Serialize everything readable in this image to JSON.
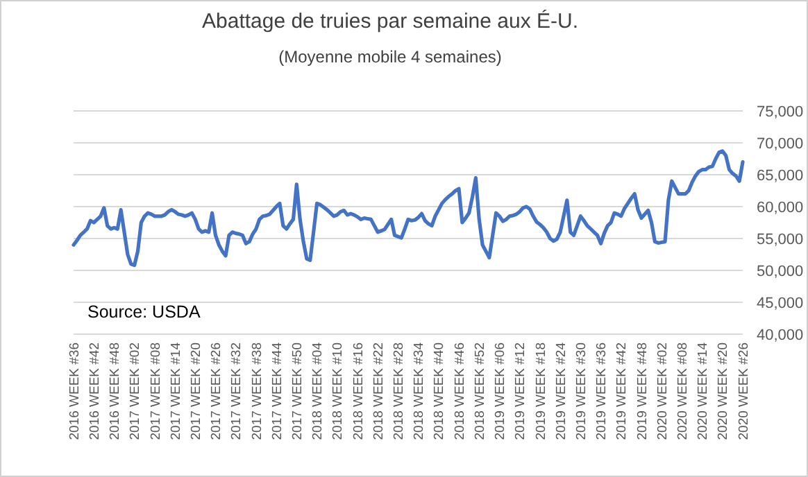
{
  "chart_data": {
    "type": "line",
    "title": "Abattage de truies par semaine aux É-U.",
    "subtitle": "(Moyenne mobile 4 semaines)",
    "annotations": [
      "Source: USDA"
    ],
    "categories": [
      "2016 WEEK #36",
      null,
      null,
      null,
      null,
      null,
      "2016 WEEK #42",
      null,
      null,
      null,
      null,
      null,
      "2016 WEEK #48",
      null,
      null,
      null,
      null,
      null,
      "2017 WEEK #02",
      null,
      null,
      null,
      null,
      null,
      "2017 WEEK #08",
      null,
      null,
      null,
      null,
      null,
      "2017 WEEK #14",
      null,
      null,
      null,
      null,
      null,
      "2017 WEEK #20",
      null,
      null,
      null,
      null,
      null,
      "2017 WEEK #26",
      null,
      null,
      null,
      null,
      null,
      "2017 WEEK #32",
      null,
      null,
      null,
      null,
      null,
      "2017 WEEK #38",
      null,
      null,
      null,
      null,
      null,
      "2017 WEEK #44",
      null,
      null,
      null,
      null,
      null,
      "2017 WEEK #50",
      null,
      null,
      null,
      null,
      null,
      "2018 WEEK #04",
      null,
      null,
      null,
      null,
      null,
      "2018 WEEK #10",
      null,
      null,
      null,
      null,
      null,
      "2018 WEEK #16",
      null,
      null,
      null,
      null,
      null,
      "2018 WEEK #22",
      null,
      null,
      null,
      null,
      null,
      "2018 WEEK #28",
      null,
      null,
      null,
      null,
      null,
      "2018 WEEK #34",
      null,
      null,
      null,
      null,
      null,
      "2018 WEEK #40",
      null,
      null,
      null,
      null,
      null,
      "2018 WEEK #46",
      null,
      null,
      null,
      null,
      null,
      "2018 WEEK #52",
      null,
      null,
      null,
      null,
      null,
      "2019 WEEK #06",
      null,
      null,
      null,
      null,
      null,
      "2019 WEEK #12",
      null,
      null,
      null,
      null,
      null,
      "2019 WEEK #18",
      null,
      null,
      null,
      null,
      null,
      "2019 WEEK #24",
      null,
      null,
      null,
      null,
      null,
      "2019 WEEK #30",
      null,
      null,
      null,
      null,
      null,
      "2019 WEEK #36",
      null,
      null,
      null,
      null,
      null,
      "2019 WEEK #42",
      null,
      null,
      null,
      null,
      null,
      "2019 WEEK #48",
      null,
      null,
      null,
      null,
      null,
      "2020 WEEK #02",
      null,
      null,
      null,
      null,
      null,
      "2020 WEEK #08",
      null,
      null,
      null,
      null,
      null,
      "2020 WEEK #14",
      null,
      null,
      null,
      null,
      null,
      "2020 WEEK #20",
      null,
      null,
      null,
      null,
      null,
      "2020 WEEK #26"
    ],
    "series": [
      {
        "color": "#4472c4",
        "values": [
          54000,
          54700,
          55500,
          56000,
          56500,
          57800,
          57500,
          58000,
          58500,
          59800,
          57000,
          56500,
          56700,
          56500,
          59500,
          56000,
          52500,
          51000,
          50800,
          53000,
          57500,
          58500,
          59000,
          58800,
          58500,
          58500,
          58500,
          58700,
          59200,
          59500,
          59200,
          58800,
          58700,
          58500,
          58700,
          59000,
          58000,
          56500,
          56000,
          56200,
          56000,
          59000,
          55500,
          54000,
          53000,
          52300,
          55500,
          56000,
          55800,
          55700,
          55500,
          54200,
          54500,
          55700,
          56500,
          58000,
          58500,
          58600,
          58800,
          59400,
          60000,
          60500,
          57000,
          56500,
          57300,
          58000,
          63500,
          58000,
          54500,
          51800,
          51600,
          56000,
          60500,
          60300,
          59900,
          59500,
          59000,
          58500,
          58700,
          59200,
          59400,
          58700,
          58900,
          58700,
          58400,
          58000,
          58200,
          58100,
          58000,
          57000,
          56000,
          56200,
          56400,
          57200,
          58000,
          55500,
          55300,
          55100,
          56500,
          58000,
          57800,
          57900,
          58300,
          58900,
          57800,
          57300,
          57000,
          58500,
          59500,
          60500,
          61100,
          61600,
          62000,
          62500,
          62800,
          57500,
          58200,
          59000,
          61500,
          64500,
          58000,
          54000,
          53000,
          52000,
          55500,
          59000,
          58500,
          57700,
          58000,
          58500,
          58600,
          58800,
          59200,
          59800,
          60000,
          59600,
          58500,
          57600,
          57200,
          56700,
          56000,
          55000,
          54600,
          54900,
          56000,
          58500,
          61000,
          56000,
          55500,
          57000,
          58500,
          57800,
          57000,
          56500,
          56000,
          55500,
          54200,
          55800,
          57000,
          57500,
          59000,
          58800,
          58500,
          59700,
          60500,
          61300,
          62000,
          59500,
          58200,
          58800,
          59400,
          57500,
          54500,
          54300,
          54400,
          54500,
          61000,
          64000,
          63000,
          62000,
          62000,
          62000,
          62500,
          63800,
          64800,
          65500,
          65800,
          65800,
          66200,
          66300,
          67500,
          68500,
          68700,
          68000,
          65800,
          65200,
          64800,
          64000,
          67000
        ]
      }
    ],
    "ylim": [
      40000,
      75000
    ],
    "yticks": [
      {
        "value": 40000,
        "label": "40,000"
      },
      {
        "value": 45000,
        "label": "45,000"
      },
      {
        "value": 50000,
        "label": "50,000"
      },
      {
        "value": 55000,
        "label": "55,000"
      },
      {
        "value": 60000,
        "label": "60,000"
      },
      {
        "value": 65000,
        "label": "65,000"
      },
      {
        "value": 70000,
        "label": "70,000"
      },
      {
        "value": 75000,
        "label": "75,000"
      }
    ],
    "grid": "y",
    "marker": "none",
    "line_style": "solid"
  }
}
